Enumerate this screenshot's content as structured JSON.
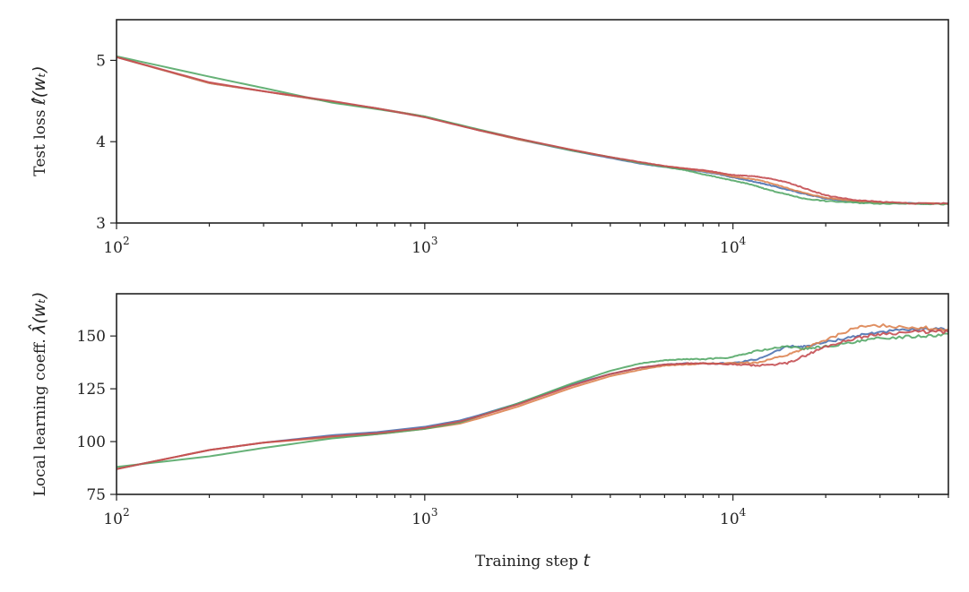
{
  "chart_data": [
    {
      "type": "line",
      "x_scale": "log",
      "xlim": [
        100,
        50000
      ],
      "ylim": [
        3,
        5.5
      ],
      "ylabel_prefix": "Test loss",
      "ylabel_math": "ℓ̂(wₜ)",
      "xlabel": "",
      "x_ticks": [
        {
          "value": 100,
          "base": "10",
          "exp": "2"
        },
        {
          "value": 1000,
          "base": "10",
          "exp": "3"
        },
        {
          "value": 10000,
          "base": "10",
          "exp": "4"
        }
      ],
      "y_ticks": [
        3,
        4,
        5
      ],
      "colors": [
        "#4c72b0",
        "#dd8452",
        "#55a868",
        "#c44e52"
      ],
      "series": [
        {
          "color": "#4c72b0",
          "x": [
            100,
            200,
            300,
            500,
            700,
            1000,
            1500,
            2000,
            3000,
            4000,
            5000,
            6000,
            7000,
            8000,
            9000,
            10000,
            11000,
            12000,
            13000,
            15000,
            17000,
            20000,
            25000,
            30000,
            40000,
            50000
          ],
          "y": [
            5.04,
            4.72,
            4.62,
            4.49,
            4.41,
            4.31,
            4.14,
            4.03,
            3.89,
            3.8,
            3.73,
            3.69,
            3.66,
            3.63,
            3.6,
            3.56,
            3.53,
            3.5,
            3.47,
            3.41,
            3.36,
            3.3,
            3.26,
            3.25,
            3.24,
            3.24
          ]
        },
        {
          "color": "#dd8452",
          "x": [
            100,
            200,
            300,
            500,
            700,
            1000,
            1500,
            2000,
            3000,
            4000,
            5000,
            6000,
            7000,
            8000,
            9000,
            10000,
            11000,
            12000,
            13000,
            15000,
            17000,
            20000,
            25000,
            30000,
            40000,
            50000
          ],
          "y": [
            5.04,
            4.72,
            4.62,
            4.49,
            4.41,
            4.31,
            4.14,
            4.03,
            3.9,
            3.81,
            3.74,
            3.7,
            3.67,
            3.64,
            3.61,
            3.57,
            3.55,
            3.53,
            3.5,
            3.43,
            3.37,
            3.31,
            3.27,
            3.25,
            3.24,
            3.24
          ]
        },
        {
          "color": "#55a868",
          "x": [
            100,
            200,
            300,
            500,
            700,
            1000,
            1500,
            2000,
            3000,
            4000,
            5000,
            6000,
            7000,
            8000,
            9000,
            10000,
            11000,
            12000,
            13000,
            15000,
            17000,
            20000,
            25000,
            30000,
            40000,
            50000
          ],
          "y": [
            5.05,
            4.8,
            4.66,
            4.48,
            4.4,
            4.31,
            4.15,
            4.04,
            3.89,
            3.81,
            3.74,
            3.69,
            3.65,
            3.6,
            3.56,
            3.52,
            3.49,
            3.45,
            3.41,
            3.35,
            3.3,
            3.27,
            3.25,
            3.24,
            3.24,
            3.23
          ]
        },
        {
          "color": "#c44e52",
          "x": [
            100,
            200,
            300,
            500,
            700,
            1000,
            1500,
            2000,
            3000,
            4000,
            5000,
            6000,
            7000,
            8000,
            9000,
            10000,
            11000,
            12000,
            13000,
            15000,
            17000,
            20000,
            25000,
            30000,
            40000,
            50000
          ],
          "y": [
            5.04,
            4.73,
            4.62,
            4.5,
            4.41,
            4.3,
            4.14,
            4.04,
            3.9,
            3.81,
            3.75,
            3.7,
            3.67,
            3.65,
            3.62,
            3.59,
            3.58,
            3.57,
            3.55,
            3.5,
            3.43,
            3.34,
            3.28,
            3.26,
            3.24,
            3.24
          ]
        }
      ]
    },
    {
      "type": "line",
      "x_scale": "log",
      "xlim": [
        100,
        50000
      ],
      "ylim": [
        75,
        170
      ],
      "ylabel_prefix": "Local learning coeff.",
      "ylabel_math": "λ̂(wₜ)",
      "xlabel_prefix": "Training step",
      "xlabel_math": "t",
      "x_ticks": [
        {
          "value": 100,
          "base": "10",
          "exp": "2"
        },
        {
          "value": 1000,
          "base": "10",
          "exp": "3"
        },
        {
          "value": 10000,
          "base": "10",
          "exp": "4"
        }
      ],
      "y_ticks": [
        75,
        100,
        125,
        150
      ],
      "colors": [
        "#4c72b0",
        "#dd8452",
        "#55a868",
        "#c44e52"
      ],
      "series": [
        {
          "color": "#4c72b0",
          "x": [
            100,
            200,
            300,
            500,
            700,
            1000,
            1300,
            1500,
            2000,
            3000,
            4000,
            5000,
            6000,
            7000,
            8000,
            10000,
            12000,
            15000,
            17000,
            20000,
            25000,
            30000,
            40000,
            50000
          ],
          "y": [
            87,
            96,
            99.5,
            103,
            104.5,
            107,
            110,
            112.5,
            118,
            127,
            132,
            135,
            136.5,
            137,
            137,
            137,
            139,
            145,
            145,
            147,
            150,
            152,
            153,
            153
          ]
        },
        {
          "color": "#dd8452",
          "x": [
            100,
            200,
            300,
            500,
            700,
            1000,
            1300,
            1500,
            2000,
            3000,
            4000,
            5000,
            6000,
            7000,
            8000,
            10000,
            12000,
            15000,
            17000,
            20000,
            25000,
            30000,
            40000,
            50000
          ],
          "y": [
            87,
            96,
            99.5,
            102,
            103.5,
            106,
            108.5,
            111,
            116.5,
            125.5,
            131,
            134,
            136,
            136.5,
            137,
            137,
            137.5,
            141,
            144,
            148,
            154,
            155,
            154,
            153
          ]
        },
        {
          "color": "#55a868",
          "x": [
            100,
            200,
            300,
            500,
            700,
            1000,
            1300,
            1500,
            2000,
            3000,
            4000,
            5000,
            6000,
            7000,
            8000,
            10000,
            12000,
            15000,
            17000,
            20000,
            25000,
            30000,
            40000,
            50000
          ],
          "y": [
            88,
            93,
            97,
            101.5,
            103.5,
            106,
            109,
            112,
            118,
            127.5,
            133.5,
            137,
            138.5,
            139,
            139,
            140,
            143,
            145,
            144,
            145,
            147,
            149,
            150,
            151
          ]
        },
        {
          "color": "#c44e52",
          "x": [
            100,
            200,
            300,
            500,
            700,
            1000,
            1300,
            1500,
            2000,
            3000,
            4000,
            5000,
            6000,
            7000,
            8000,
            10000,
            12000,
            15000,
            17000,
            20000,
            25000,
            30000,
            40000,
            50000
          ],
          "y": [
            87,
            96,
            99.5,
            102.5,
            104,
            106.5,
            109.5,
            112,
            117.5,
            126.5,
            132,
            135,
            136.5,
            137,
            137,
            136.5,
            136,
            137,
            140.5,
            145,
            149,
            151,
            152,
            152
          ]
        }
      ]
    }
  ]
}
